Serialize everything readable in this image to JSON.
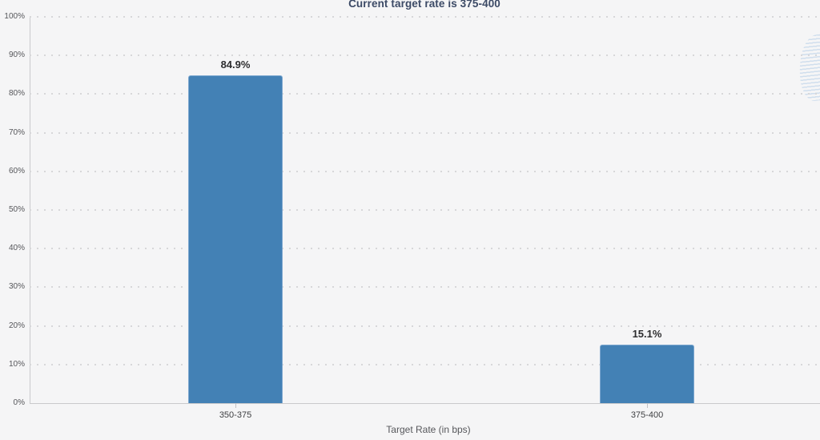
{
  "chart": {
    "title": "Current target rate is 375-400",
    "x_axis_title": "Target Rate (in bps)"
  },
  "chart_data": {
    "type": "bar",
    "title": "Current target rate is 375-400",
    "xlabel": "Target Rate (in bps)",
    "ylabel": "",
    "categories": [
      "350-375",
      "375-400"
    ],
    "values": [
      84.9,
      15.1
    ],
    "value_labels": [
      "84.9%",
      "15.1%"
    ],
    "y_tick_values": [
      0,
      10,
      20,
      30,
      40,
      50,
      60,
      70,
      80,
      90,
      100
    ],
    "y_tick_labels": [
      "0%",
      "10%",
      "20%",
      "30%",
      "40%",
      "50%",
      "60%",
      "70%",
      "80%",
      "90%",
      "100%"
    ],
    "ylim": [
      0,
      100
    ],
    "grid": "horizontal-dotted",
    "legend_position": "none",
    "colors": {
      "bar_fill": "#4381b5",
      "bar_border": "#7ea8d0",
      "title_text": "#3c4a66",
      "axis_line": "#c9cacc",
      "gridline": "#d7d7d9",
      "background": "#f5f5f6",
      "watermark": "#c3d6ea"
    }
  }
}
